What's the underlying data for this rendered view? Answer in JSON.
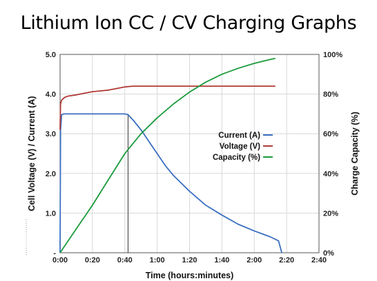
{
  "title": "Lithium Ion CC / CV Charging Graphs",
  "chart_data": {
    "type": "line",
    "title": "Lithium Ion CC / CV Charging Graphs",
    "xlabel": "Time (hours:minutes)",
    "ylabel_left": "Cell Voltage (V) / Current (A)",
    "ylabel_right": "Charge Capacity (%)",
    "x_ticks": [
      "0:00",
      "0:20",
      "0:40",
      "1:00",
      "1:20",
      "1:40",
      "2:00",
      "2:20",
      "2:40"
    ],
    "y_left_ticks": [
      "-",
      "1.0",
      "2.0",
      "3.0",
      "4.0",
      "5.0"
    ],
    "y_right_ticks": [
      "0%",
      "20%",
      "40%",
      "60%",
      "80%",
      "100%"
    ],
    "xlim_minutes": [
      0,
      160
    ],
    "ylim_left": [
      0,
      5
    ],
    "ylim_right": [
      0,
      100
    ],
    "grid": true,
    "legend_position": "center-right",
    "marker_line_minutes": 42,
    "series": [
      {
        "name": "Current (A)",
        "axis": "left",
        "color": "#3a6fc0",
        "x": [
          0,
          0.3,
          1,
          2,
          10,
          20,
          30,
          40,
          42,
          45,
          50,
          55,
          60,
          65,
          70,
          80,
          90,
          100,
          110,
          120,
          130,
          135,
          137
        ],
        "y": [
          0,
          3.1,
          3.48,
          3.5,
          3.5,
          3.5,
          3.5,
          3.5,
          3.48,
          3.35,
          3.1,
          2.8,
          2.5,
          2.2,
          1.95,
          1.55,
          1.2,
          0.95,
          0.72,
          0.55,
          0.4,
          0.3,
          0.0
        ]
      },
      {
        "name": "Voltage (V)",
        "axis": "left",
        "color": "#b03a35",
        "x": [
          0,
          0.3,
          1,
          3,
          5,
          10,
          15,
          20,
          25,
          30,
          35,
          40,
          45,
          50,
          60,
          80,
          100,
          120,
          133
        ],
        "y": [
          3.1,
          3.75,
          3.85,
          3.92,
          3.95,
          3.98,
          4.02,
          4.06,
          4.08,
          4.1,
          4.14,
          4.18,
          4.2,
          4.2,
          4.2,
          4.2,
          4.2,
          4.2,
          4.2
        ]
      },
      {
        "name": "Capacity (%)",
        "axis": "right",
        "color": "#1a9a3c",
        "x": [
          0,
          10,
          20,
          30,
          40,
          42,
          50,
          60,
          70,
          80,
          90,
          100,
          110,
          120,
          130,
          133
        ],
        "y": [
          0,
          12,
          24,
          37,
          50,
          52,
          60,
          68,
          75,
          81,
          86,
          90,
          93,
          95.5,
          97.5,
          98
        ]
      }
    ]
  }
}
